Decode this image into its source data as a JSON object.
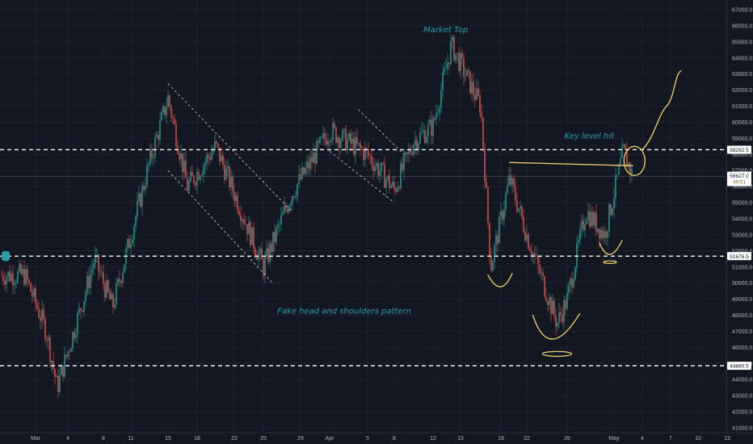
{
  "chart_data": {
    "type": "candlestick",
    "y_axis": {
      "ylim": [
        40400,
        67700
      ],
      "ticks": [
        "67000.0",
        "66000.0",
        "65000.0",
        "64000.0",
        "63000.0",
        "62000.0",
        "61000.0",
        "60000.0",
        "59000.0",
        "58000.0",
        "57000.0",
        "56000.0",
        "55000.0",
        "54000.0",
        "53000.0",
        "52000.0",
        "51000.0",
        "50000.0",
        "49000.0",
        "48000.0",
        "47000.0",
        "46000.0",
        "45000.0",
        "44000.0",
        "43000.0",
        "42000.0",
        "41000.0"
      ]
    },
    "x_axis": {
      "ticks": [
        "Mar",
        "4",
        "8",
        "11",
        "15",
        "18",
        "22",
        "25",
        "29",
        "Apr",
        "5",
        "8",
        "12",
        "15",
        "19",
        "22",
        "26",
        "May",
        "4",
        "7",
        "10",
        "13"
      ]
    },
    "horizontal_levels": [
      {
        "label": "58292.5",
        "value": 58292.5
      },
      {
        "label": "51676.5",
        "value": 51676.5
      },
      {
        "label": "44860.5",
        "value": 44860.5
      }
    ],
    "price_labels": {
      "current": "56627.0",
      "timer": "49:51"
    },
    "annotations": [
      {
        "text": "Market Top"
      },
      {
        "text": "Key level hit"
      },
      {
        "text": "Fake head and shoulders pattern"
      }
    ],
    "key_prices": [
      {
        "date": "Feb 28",
        "value": 50500
      },
      {
        "date": "Mar 2",
        "value": 47000
      },
      {
        "date": "Mar 3",
        "value": 43500
      },
      {
        "date": "Mar 6",
        "value": 49500
      },
      {
        "date": "Mar 7",
        "value": 51500
      },
      {
        "date": "Mar 9",
        "value": 48500
      },
      {
        "date": "Mar 13",
        "value": 57500
      },
      {
        "date": "Mar 15",
        "value": 61500
      },
      {
        "date": "Mar 17",
        "value": 56000
      },
      {
        "date": "Mar 20",
        "value": 58500
      },
      {
        "date": "Mar 25",
        "value": 51000
      },
      {
        "date": "Mar 28",
        "value": 55500
      },
      {
        "date": "Apr 1",
        "value": 59500
      },
      {
        "date": "Apr 5",
        "value": 58000
      },
      {
        "date": "Apr 8",
        "value": 55800
      },
      {
        "date": "Apr 10",
        "value": 58800
      },
      {
        "date": "Apr 12",
        "value": 59800
      },
      {
        "date": "Apr 14",
        "value": 64800
      },
      {
        "date": "Apr 17",
        "value": 61000
      },
      {
        "date": "Apr 18",
        "value": 51000
      },
      {
        "date": "Apr 20",
        "value": 56500
      },
      {
        "date": "Apr 22",
        "value": 53000
      },
      {
        "date": "Apr 25",
        "value": 47500
      },
      {
        "date": "Apr 26",
        "value": 49000
      },
      {
        "date": "Apr 28",
        "value": 54500
      },
      {
        "date": "Apr 30",
        "value": 53000
      },
      {
        "date": "May 2",
        "value": 58200
      },
      {
        "date": "May 3",
        "value": 56627
      }
    ],
    "colors": {
      "background": "#131722",
      "up": "#26a69a",
      "down": "#ef5350",
      "level": "#ffffff",
      "channel": "#d1d4dc",
      "drawing": "#f5d76e",
      "annotation": "#2aa0a8",
      "axis_text": "#b2b5be"
    }
  }
}
